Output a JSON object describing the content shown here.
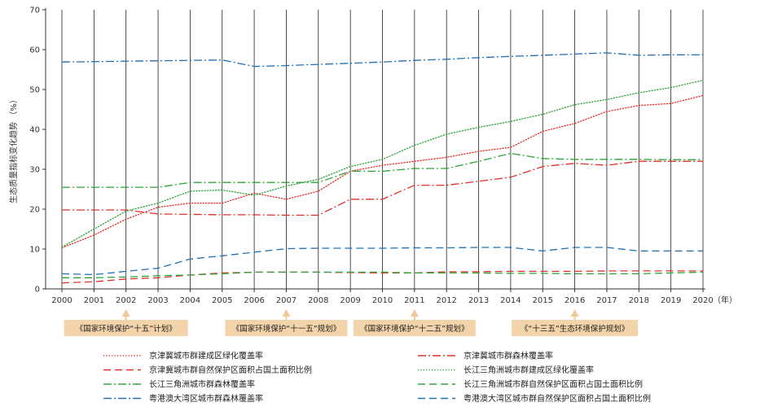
{
  "chart_data": {
    "type": "line",
    "ylabel": "生态质量指标变化趋势 （%）",
    "x_unit": "（年）",
    "ylim": [
      0,
      70
    ],
    "yticks": [
      0,
      10,
      20,
      30,
      40,
      50,
      60,
      70
    ],
    "x": [
      2000,
      2001,
      2002,
      2003,
      2004,
      2005,
      2006,
      2007,
      2008,
      2009,
      2010,
      2011,
      2012,
      2013,
      2014,
      2015,
      2016,
      2017,
      2018,
      2019,
      2020
    ],
    "grid": "vertical lines at each year",
    "legend_position": "bottom",
    "series": [
      {
        "name": "京津冀城市群建成区绿化覆盖率",
        "color": "#e0302a",
        "style": "dotted",
        "values": [
          10.3,
          13.5,
          17.5,
          20.5,
          21.5,
          21.5,
          24.0,
          22.5,
          24.5,
          29.5,
          31.0,
          32.0,
          33.0,
          34.5,
          35.5,
          39.5,
          41.5,
          44.5,
          46.0,
          46.5,
          48.5
        ]
      },
      {
        "name": "京津冀城市群森林覆盖率",
        "color": "#e0302a",
        "style": "dashdot",
        "values": [
          19.8,
          19.8,
          19.8,
          18.8,
          18.7,
          18.6,
          18.6,
          18.5,
          18.5,
          22.5,
          22.5,
          26.0,
          26.0,
          27.0,
          28.0,
          30.7,
          31.5,
          31.0,
          32.0,
          32.0,
          32.0
        ]
      },
      {
        "name": "京津冀城市群自然保护区面积占国土面积比例",
        "color": "#e0302a",
        "style": "dashed",
        "values": [
          1.5,
          1.8,
          2.5,
          2.8,
          3.5,
          4.0,
          4.2,
          4.2,
          4.2,
          4.1,
          4.0,
          4.0,
          4.3,
          4.3,
          4.4,
          4.4,
          4.4,
          4.5,
          4.5,
          4.5,
          4.5
        ]
      },
      {
        "name": "长江三角洲城市群建成区绿化覆盖率",
        "color": "#2ea33a",
        "style": "dotted",
        "values": [
          10.5,
          15.0,
          19.5,
          21.5,
          24.5,
          24.8,
          23.5,
          25.8,
          27.5,
          30.7,
          32.5,
          36.0,
          38.8,
          40.5,
          42.0,
          43.8,
          46.2,
          47.5,
          49.2,
          50.5,
          52.3
        ]
      },
      {
        "name": "长江三角洲城市群森林覆盖率",
        "color": "#2ea33a",
        "style": "dashdot",
        "values": [
          25.5,
          25.5,
          25.5,
          25.5,
          26.7,
          26.7,
          26.7,
          26.7,
          26.7,
          29.5,
          29.5,
          30.2,
          30.2,
          32.0,
          34.0,
          32.7,
          32.5,
          32.5,
          32.5,
          32.4,
          32.4
        ]
      },
      {
        "name": "长江三角洲城市群自然保护区面积占国土面积比例",
        "color": "#2ea33a",
        "style": "dashed",
        "values": [
          2.8,
          2.8,
          3.0,
          3.3,
          3.5,
          3.8,
          4.2,
          4.2,
          4.2,
          4.2,
          4.2,
          4.0,
          4.0,
          4.0,
          3.9,
          3.9,
          3.8,
          3.8,
          3.8,
          4.0,
          4.2
        ]
      },
      {
        "name": "粤港澳大湾区城市群森林覆盖率",
        "color": "#1f6fb4",
        "style": "dashdot",
        "values": [
          56.9,
          57.0,
          57.1,
          57.2,
          57.3,
          57.4,
          55.8,
          56.0,
          56.3,
          56.6,
          56.9,
          57.3,
          57.6,
          58.0,
          58.3,
          58.6,
          58.9,
          59.2,
          58.6,
          58.7,
          58.7
        ]
      },
      {
        "name": "粤港澳大湾区城市群自然保护区面积占国土面积比例",
        "color": "#1f6fb4",
        "style": "dashed",
        "values": [
          3.8,
          3.6,
          4.4,
          5.2,
          7.5,
          8.3,
          9.2,
          10.1,
          10.2,
          10.2,
          10.2,
          10.3,
          10.3,
          10.4,
          10.4,
          9.5,
          10.4,
          10.4,
          9.5,
          9.5,
          9.5
        ]
      }
    ],
    "annotations": [
      {
        "label": "《国家环境保护“十五”计划》",
        "year": 2002
      },
      {
        "label": "《国家环境保护“十一五”规划》",
        "year": 2007
      },
      {
        "label": "《国家环境保护“十二五”规划》",
        "year": 2011
      },
      {
        "label": "《“十三五”生态环境保护规划》",
        "year": 2016
      }
    ]
  },
  "colors": {
    "annotation_box": "#f3d3a9",
    "annotation_arrow": "#f0c89a",
    "axis": "#333333"
  }
}
